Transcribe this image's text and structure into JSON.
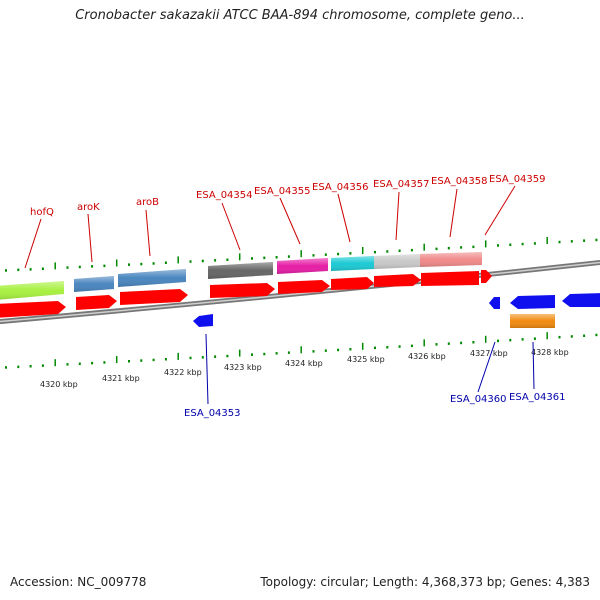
{
  "header": {
    "title": "Cronobacter sakazakii ATCC BAA-894 chromosome, complete geno..."
  },
  "footer": {
    "accession": "Accession: NC_009778",
    "summary": "Topology: circular; Length: 4,368,373 bp; Genes: 4,383"
  },
  "colors": {
    "label_forward": "#cc0000",
    "label_reverse": "#0000aa",
    "cds": "#ff0000",
    "reverse_cds": "#1010ee",
    "backbone": "#888888",
    "ticks": "#008800"
  },
  "scale": {
    "kbp_labels": [
      "4320 kbp",
      "4321 kbp",
      "4322 kbp",
      "4323 kbp",
      "4324 kbp",
      "4325 kbp",
      "4326 kbp",
      "4327 kbp",
      "4328 kbp"
    ]
  },
  "genes_forward": [
    {
      "label": "hofQ",
      "color": "#a8f040"
    },
    {
      "label": "aroK",
      "color": "#4a86bf"
    },
    {
      "label": "aroB",
      "color": "#4a86bf"
    },
    {
      "label": "ESA_04354",
      "color": "#666666"
    },
    {
      "label": "ESA_04355",
      "color": "#e61ea6"
    },
    {
      "label": "ESA_04356",
      "color": "#1ccad4"
    },
    {
      "label": "ESA_04357",
      "color": "#c8c8c8"
    },
    {
      "label": "ESA_04358",
      "color": "#f08a8a"
    },
    {
      "label": "ESA_04359",
      "color": "#f08a8a"
    }
  ],
  "genes_reverse": [
    {
      "label": "ESA_04353",
      "color": "#1010ee"
    },
    {
      "label": "ESA_04360",
      "color": "#1010ee"
    },
    {
      "label": "ESA_04361",
      "color": "#f08a10"
    }
  ]
}
